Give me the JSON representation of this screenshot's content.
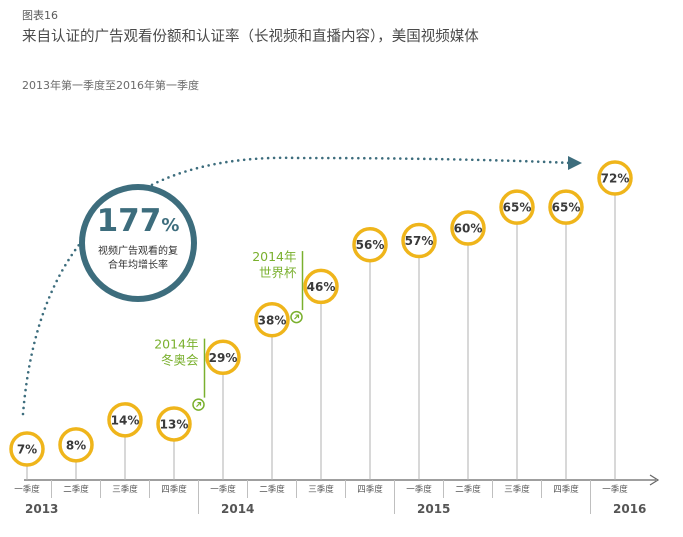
{
  "figure_label": "图表16",
  "title": "来自认证的广告观看份额和认证率（长视频和直播内容），美国视频媒体",
  "subtitle": "2013年第一季度至2016年第一季度",
  "colors": {
    "circle": "#efb51b",
    "stem": "#b0b0b0",
    "arrow": "#3d6d7d",
    "event": "#7ab02e",
    "axis": "#666666"
  },
  "cagr": {
    "value": "177",
    "unit": "%",
    "text": "视频广告观看的复合年均增长率"
  },
  "chart_data": {
    "type": "lollipop",
    "title": "来自认证的广告观看份额和认证率（长视频和直播内容），美国视频媒体",
    "subtitle": "2013年第一季度至2016年第一季度",
    "categories": [
      "一季度",
      "二季度",
      "三季度",
      "四季度",
      "一季度",
      "二季度",
      "三季度",
      "四季度",
      "一季度",
      "二季度",
      "三季度",
      "四季度",
      "一季度"
    ],
    "years": [
      {
        "label": "2013",
        "start": 0
      },
      {
        "label": "2014",
        "start": 4
      },
      {
        "label": "2015",
        "start": 8
      },
      {
        "label": "2016",
        "start": 12
      }
    ],
    "values": [
      7,
      8,
      14,
      13,
      29,
      38,
      46,
      56,
      57,
      60,
      65,
      65,
      72
    ],
    "value_labels": [
      "7%",
      "8%",
      "14%",
      "13%",
      "29%",
      "38%",
      "46%",
      "56%",
      "57%",
      "60%",
      "65%",
      "65%",
      "72%"
    ],
    "ylim": [
      0,
      100
    ],
    "annotations": [
      {
        "lines": [
          "2014年",
          "冬奥会"
        ],
        "after_index": 3
      },
      {
        "lines": [
          "2014年",
          "世界杯"
        ],
        "after_index": 5
      }
    ]
  }
}
